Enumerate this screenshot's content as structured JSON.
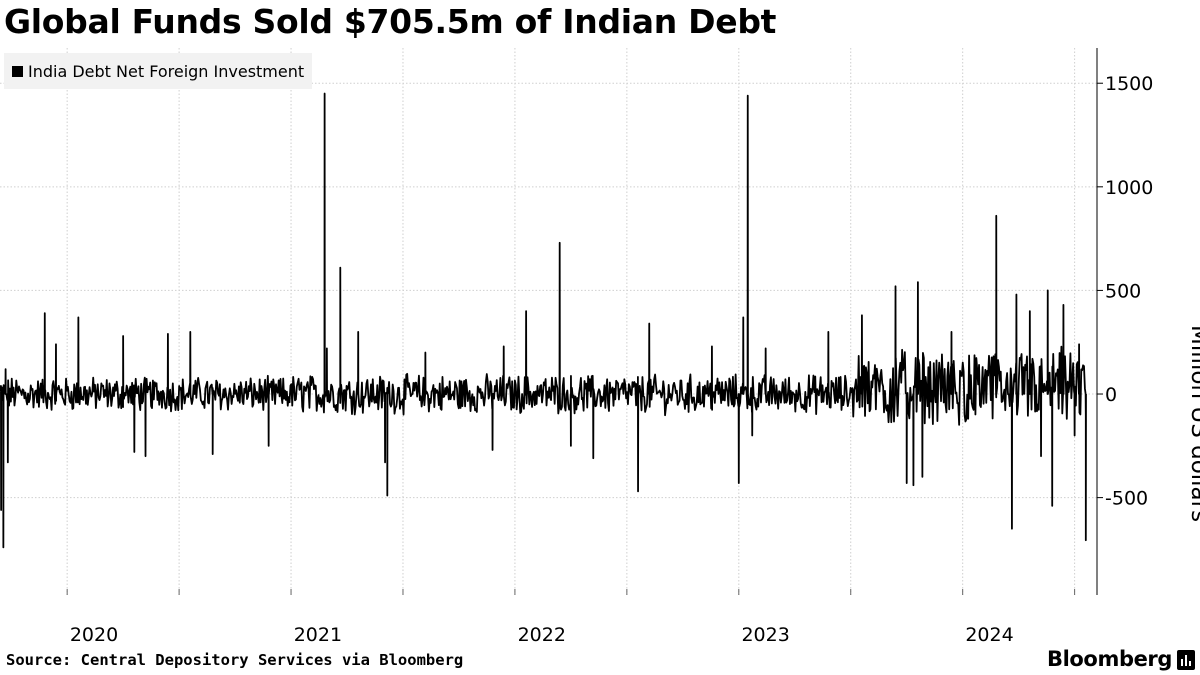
{
  "chart_data": {
    "type": "line",
    "title": "Global Funds Sold $705.5m of Indian Debt",
    "legend": [
      "India Debt Net Foreign Investment"
    ],
    "ylabel": "Million US dollars",
    "xlabel": "",
    "ylim": [
      -970,
      1670
    ],
    "yticks": [
      -500,
      0,
      500,
      1000,
      1500
    ],
    "x_range": [
      2019.7,
      2024.6
    ],
    "x_tick_years": [
      2020,
      2021,
      2022,
      2023,
      2024
    ],
    "grid": true,
    "legend_position": "top-left",
    "source": "Source: Central Depository Services via Bloomberg",
    "brand": "Bloomberg",
    "series": [
      {
        "name": "India Debt Net Foreign Investment",
        "noise_amplitude_by_year": [
          {
            "from": 2019.7,
            "to": 2021.0,
            "amp": 70
          },
          {
            "from": 2021.0,
            "to": 2023.5,
            "amp": 80
          },
          {
            "from": 2023.5,
            "to": 2024.6,
            "amp": 150
          }
        ],
        "spikes": [
          {
            "x": 2019.705,
            "y": -560
          },
          {
            "x": 2019.715,
            "y": -740
          },
          {
            "x": 2019.725,
            "y": 120
          },
          {
            "x": 2019.735,
            "y": -330
          },
          {
            "x": 2019.9,
            "y": 390
          },
          {
            "x": 2019.95,
            "y": 240
          },
          {
            "x": 2020.05,
            "y": 370
          },
          {
            "x": 2020.25,
            "y": 280
          },
          {
            "x": 2020.3,
            "y": -280
          },
          {
            "x": 2020.35,
            "y": -300
          },
          {
            "x": 2020.45,
            "y": 290
          },
          {
            "x": 2020.55,
            "y": 300
          },
          {
            "x": 2020.65,
            "y": -290
          },
          {
            "x": 2020.9,
            "y": -250
          },
          {
            "x": 2021.15,
            "y": 1450
          },
          {
            "x": 2021.16,
            "y": 220
          },
          {
            "x": 2021.22,
            "y": 610
          },
          {
            "x": 2021.3,
            "y": 300
          },
          {
            "x": 2021.42,
            "y": -330
          },
          {
            "x": 2021.43,
            "y": -490
          },
          {
            "x": 2021.6,
            "y": 200
          },
          {
            "x": 2021.9,
            "y": -270
          },
          {
            "x": 2021.95,
            "y": 230
          },
          {
            "x": 2022.05,
            "y": 400
          },
          {
            "x": 2022.2,
            "y": 730
          },
          {
            "x": 2022.25,
            "y": -250
          },
          {
            "x": 2022.35,
            "y": -310
          },
          {
            "x": 2022.55,
            "y": -470
          },
          {
            "x": 2022.6,
            "y": 340
          },
          {
            "x": 2022.88,
            "y": 230
          },
          {
            "x": 2023.0,
            "y": -430
          },
          {
            "x": 2023.02,
            "y": 370
          },
          {
            "x": 2023.04,
            "y": 1440
          },
          {
            "x": 2023.06,
            "y": -200
          },
          {
            "x": 2023.12,
            "y": 220
          },
          {
            "x": 2023.4,
            "y": 300
          },
          {
            "x": 2023.55,
            "y": 380
          },
          {
            "x": 2023.7,
            "y": 520
          },
          {
            "x": 2023.75,
            "y": -430
          },
          {
            "x": 2023.78,
            "y": -440
          },
          {
            "x": 2023.8,
            "y": 540
          },
          {
            "x": 2023.82,
            "y": -400
          },
          {
            "x": 2023.95,
            "y": 300
          },
          {
            "x": 2024.15,
            "y": 860
          },
          {
            "x": 2024.22,
            "y": -650
          },
          {
            "x": 2024.24,
            "y": 480
          },
          {
            "x": 2024.3,
            "y": 400
          },
          {
            "x": 2024.35,
            "y": -300
          },
          {
            "x": 2024.38,
            "y": 500
          },
          {
            "x": 2024.4,
            "y": -540
          },
          {
            "x": 2024.45,
            "y": 430
          },
          {
            "x": 2024.5,
            "y": -200
          },
          {
            "x": 2024.52,
            "y": 240
          },
          {
            "x": 2024.55,
            "y": -705.5
          }
        ]
      }
    ]
  }
}
